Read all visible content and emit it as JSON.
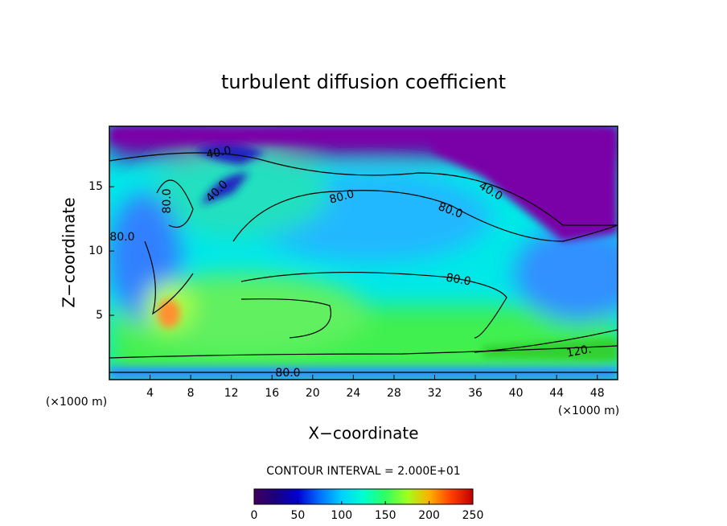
{
  "chart_data": {
    "type": "contour",
    "title": "turbulent diffusion coefficient",
    "x_label": "X−coordinate",
    "y_label": "Z−coordinate",
    "x_unit": "(×1000 m)",
    "y_unit": "(×1000 m)",
    "xlim": [
      0,
      50
    ],
    "xticks": [
      4,
      8,
      12,
      16,
      20,
      24,
      28,
      32,
      36,
      40,
      44,
      48
    ],
    "ylim": [
      0,
      19.7
    ],
    "yticks": [
      5,
      10,
      15
    ],
    "contour_interval": "CONTOUR INTERVAL = 2.000E+01",
    "contour_labels": [
      {
        "value": 40,
        "label": "40.0"
      },
      {
        "value": 40,
        "label": "40.0"
      },
      {
        "value": 80,
        "label": "80.0"
      },
      {
        "value": 80,
        "label": "80.0"
      },
      {
        "value": 80,
        "label": "80.0"
      },
      {
        "value": 40,
        "label": "40.0"
      },
      {
        "value": 80,
        "label": "80.0"
      },
      {
        "value": 120,
        "label": "120."
      },
      {
        "value": 80,
        "label": "80.0"
      },
      {
        "value": 80,
        "label": "80.0"
      }
    ],
    "colorbar_lim": [
      0,
      250
    ],
    "colorbar_ticks": [
      0,
      50,
      100,
      150,
      200,
      250
    ],
    "colormap": [
      "#40005a",
      "#1a0080",
      "#0000d0",
      "#0070ff",
      "#00d0ff",
      "#00ffd0",
      "#30ff60",
      "#a0ff20",
      "#ffb000",
      "#ff4000",
      "#c00000"
    ]
  }
}
